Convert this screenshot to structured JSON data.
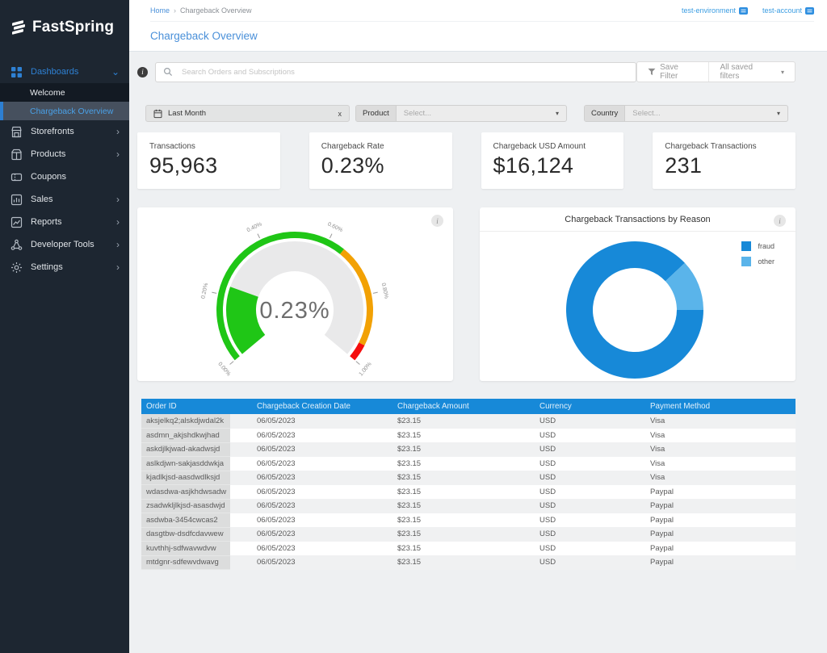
{
  "colors": {
    "sidebar_bg": "#1d2631",
    "sidebar_sub_bg": "#131a23",
    "sidebar_selected_bg": "#46505e",
    "accent_blue": "#2e81d4",
    "title_blue": "#4a90d9",
    "table_header_blue": "#1789d8",
    "content_bg": "#eef0f2",
    "gauge_green": "#1fc616",
    "gauge_orange": "#f2a104",
    "gauge_red": "#f50d0d",
    "gauge_track": "#e9e9ea",
    "donut_fraud": "#1789d8",
    "donut_other": "#5ab4ea"
  },
  "glyphs": {
    "chevron_down": "⌄",
    "chevron_right": "›",
    "select_caret": "▾",
    "breadcrumb_sep": "›",
    "close_x": "x",
    "info": "i"
  },
  "sidebar": {
    "logo_text": "FastSpring",
    "items": [
      {
        "id": "dashboards",
        "label": "Dashboards",
        "icon": "grid-icon",
        "chevron": "down",
        "active": true
      },
      {
        "id": "welcome",
        "label": "Welcome",
        "sub": true
      },
      {
        "id": "chargeback-overview",
        "label": "Chargeback Overview",
        "sub": true,
        "selected": true
      },
      {
        "id": "storefronts",
        "label": "Storefronts",
        "icon": "storefront-icon",
        "chevron": "right"
      },
      {
        "id": "products",
        "label": "Products",
        "icon": "products-icon",
        "chevron": "right"
      },
      {
        "id": "coupons",
        "label": "Coupons",
        "icon": "coupon-icon",
        "chevron": "none"
      },
      {
        "id": "sales",
        "label": "Sales",
        "icon": "sales-icon",
        "chevron": "right"
      },
      {
        "id": "reports",
        "label": "Reports",
        "icon": "reports-icon",
        "chevron": "right"
      },
      {
        "id": "developer-tools",
        "label": "Developer Tools",
        "icon": "devtools-icon",
        "chevron": "right"
      },
      {
        "id": "settings",
        "label": "Settings",
        "icon": "settings-icon",
        "chevron": "right"
      }
    ]
  },
  "header": {
    "breadcrumb": {
      "home": "Home",
      "current": "Chargeback Overview"
    },
    "environment_label": "test-environment",
    "account_label": "test-account",
    "title": "Chargeback Overview"
  },
  "search": {
    "placeholder": "Search Orders and Subscriptions",
    "value": "",
    "save_filter_label": "Save Filter",
    "saved_filters_label": "All saved filters"
  },
  "filters": {
    "date": {
      "label": "Last Month"
    },
    "product": {
      "label": "Product",
      "placeholder": "Select..."
    },
    "country": {
      "label": "Country",
      "placeholder": "Select..."
    }
  },
  "kpis": [
    {
      "label": "Transactions",
      "value": "95,963"
    },
    {
      "label": "Chargeback Rate",
      "value": "0.23%"
    },
    {
      "label": "Chargeback USD Amount",
      "value": "$16,124"
    },
    {
      "label": "Chargeback  Transactions",
      "value": "231"
    }
  ],
  "chart_data": [
    {
      "type": "gauge",
      "title": "",
      "value": 0.23,
      "value_label": "0.23%",
      "min": 0,
      "max": 1,
      "start_angle": -130,
      "end_angle": 130,
      "ticks": [
        {
          "value": 0.0,
          "label": "0.00%"
        },
        {
          "value": 0.2,
          "label": "0.20%"
        },
        {
          "value": 0.4,
          "label": "0.40%"
        },
        {
          "value": 0.6,
          "label": "0.60%"
        },
        {
          "value": 0.8,
          "label": "0.80%"
        },
        {
          "value": 1.0,
          "label": "1.00%"
        }
      ],
      "bands": [
        {
          "from": 0.0,
          "to": 0.65,
          "color": "#1fc616"
        },
        {
          "from": 0.65,
          "to": 0.95,
          "color": "#f2a104"
        },
        {
          "from": 0.95,
          "to": 1.0,
          "color": "#f50d0d"
        }
      ],
      "value_color": "#1fc616",
      "track_color": "#e9e9ea"
    },
    {
      "type": "donut",
      "title": "Chargeback Transactions by Reason",
      "legend_position": "top-right",
      "start_angle": 90,
      "series": [
        {
          "name": "fraud",
          "pct": 88,
          "color": "#1789d8"
        },
        {
          "name": "other",
          "pct": 12,
          "color": "#5ab4ea"
        }
      ]
    }
  ],
  "table": {
    "columns": [
      "Order ID",
      "Chargeback Creation Date",
      "Chargeback Amount",
      "Currency",
      "Payment Method"
    ],
    "rows": [
      [
        "aksjelkq2;alskdjwdal2k",
        "06/05/2023",
        "$23.15",
        "USD",
        "Visa"
      ],
      [
        "asdmn_akjshdkwjhad",
        "06/05/2023",
        "$23.15",
        "USD",
        "Visa"
      ],
      [
        "askdjlkjwad-akadwsjd",
        "06/05/2023",
        "$23.15",
        "USD",
        "Visa"
      ],
      [
        "aslkdjwn-sakjasddwkja",
        "06/05/2023",
        "$23.15",
        "USD",
        "Visa"
      ],
      [
        "kjadlkjsd-aasdwdlksjd",
        "06/05/2023",
        "$23.15",
        "USD",
        "Visa"
      ],
      [
        "wdasdwa-asjkhdwsadw",
        "06/05/2023",
        "$23.15",
        "USD",
        "Paypal"
      ],
      [
        "zsadwkljlkjsd-asasdwjd",
        "06/05/2023",
        "$23.15",
        "USD",
        "Paypal"
      ],
      [
        "asdwba-3454cwcas2",
        "06/05/2023",
        "$23.15",
        "USD",
        "Paypal"
      ],
      [
        "dasgtbw-dsdfcdavwew",
        "06/05/2023",
        "$23.15",
        "USD",
        "Paypal"
      ],
      [
        "kuvthhj-sdfwavwdvw",
        "06/05/2023",
        "$23.15",
        "USD",
        "Paypal"
      ],
      [
        "mtdgnr-sdfewvdwavg",
        "06/05/2023",
        "$23.15",
        "USD",
        "Paypal"
      ]
    ]
  }
}
